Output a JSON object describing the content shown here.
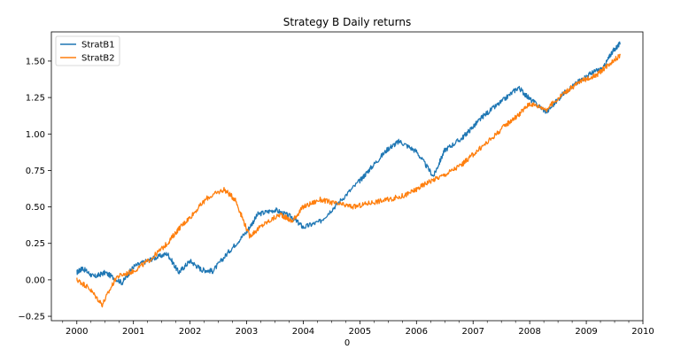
{
  "chart_data": {
    "type": "line",
    "title": "Strategy B Daily returns",
    "xlabel": "0",
    "ylabel": "",
    "xlim": [
      1999.55,
      2010.0
    ],
    "ylim": [
      -0.28,
      1.7
    ],
    "grid": false,
    "legend_position": "top-left",
    "x_ticks": [
      2000,
      2001,
      2002,
      2003,
      2004,
      2005,
      2006,
      2007,
      2008,
      2009,
      2010
    ],
    "x_tick_labels": [
      "2000",
      "2001",
      "2002",
      "2003",
      "2004",
      "2005",
      "2006",
      "2007",
      "2008",
      "2009",
      "2010"
    ],
    "y_ticks": [
      -0.25,
      0.0,
      0.25,
      0.5,
      0.75,
      1.0,
      1.25,
      1.5
    ],
    "y_tick_labels": [
      "−0.25",
      "0.00",
      "0.25",
      "0.50",
      "0.75",
      "1.00",
      "1.25",
      "1.50"
    ],
    "series": [
      {
        "name": "StratB1",
        "color": "#1f77b4",
        "x": [
          2000.0,
          2000.1,
          2000.3,
          2000.5,
          2000.8,
          2001.0,
          2001.3,
          2001.6,
          2001.8,
          2002.0,
          2002.2,
          2002.4,
          2002.7,
          2003.0,
          2003.2,
          2003.5,
          2003.8,
          2004.0,
          2004.3,
          2004.6,
          2005.0,
          2005.2,
          2005.5,
          2005.7,
          2006.0,
          2006.3,
          2006.5,
          2006.8,
          2007.0,
          2007.2,
          2007.5,
          2007.8,
          2008.0,
          2008.3,
          2008.6,
          2008.9,
          2009.1,
          2009.3,
          2009.45,
          2009.6
        ],
        "y": [
          0.05,
          0.08,
          0.02,
          0.05,
          -0.02,
          0.09,
          0.14,
          0.18,
          0.05,
          0.13,
          0.07,
          0.06,
          0.2,
          0.33,
          0.45,
          0.48,
          0.43,
          0.36,
          0.4,
          0.52,
          0.68,
          0.77,
          0.9,
          0.95,
          0.88,
          0.71,
          0.89,
          0.97,
          1.05,
          1.13,
          1.22,
          1.32,
          1.24,
          1.15,
          1.28,
          1.37,
          1.42,
          1.45,
          1.56,
          1.62
        ]
      },
      {
        "name": "StratB2",
        "color": "#ff7f0e",
        "x": [
          2000.0,
          2000.2,
          2000.45,
          2000.7,
          2001.0,
          2001.3,
          2001.6,
          2001.8,
          2002.0,
          2002.3,
          2002.6,
          2002.8,
          2003.05,
          2003.3,
          2003.6,
          2003.8,
          2004.0,
          2004.3,
          2004.6,
          2004.9,
          2005.2,
          2005.5,
          2005.8,
          2006.0,
          2006.2,
          2006.5,
          2006.8,
          2007.0,
          2007.3,
          2007.6,
          2007.8,
          2008.0,
          2008.3,
          2008.6,
          2008.9,
          2009.2,
          2009.4,
          2009.6
        ],
        "y": [
          0.0,
          -0.05,
          -0.17,
          0.02,
          0.06,
          0.14,
          0.25,
          0.35,
          0.43,
          0.56,
          0.62,
          0.55,
          0.3,
          0.38,
          0.45,
          0.4,
          0.5,
          0.55,
          0.52,
          0.5,
          0.53,
          0.55,
          0.58,
          0.62,
          0.67,
          0.72,
          0.79,
          0.86,
          0.96,
          1.07,
          1.13,
          1.21,
          1.17,
          1.28,
          1.36,
          1.41,
          1.48,
          1.54
        ]
      }
    ]
  }
}
